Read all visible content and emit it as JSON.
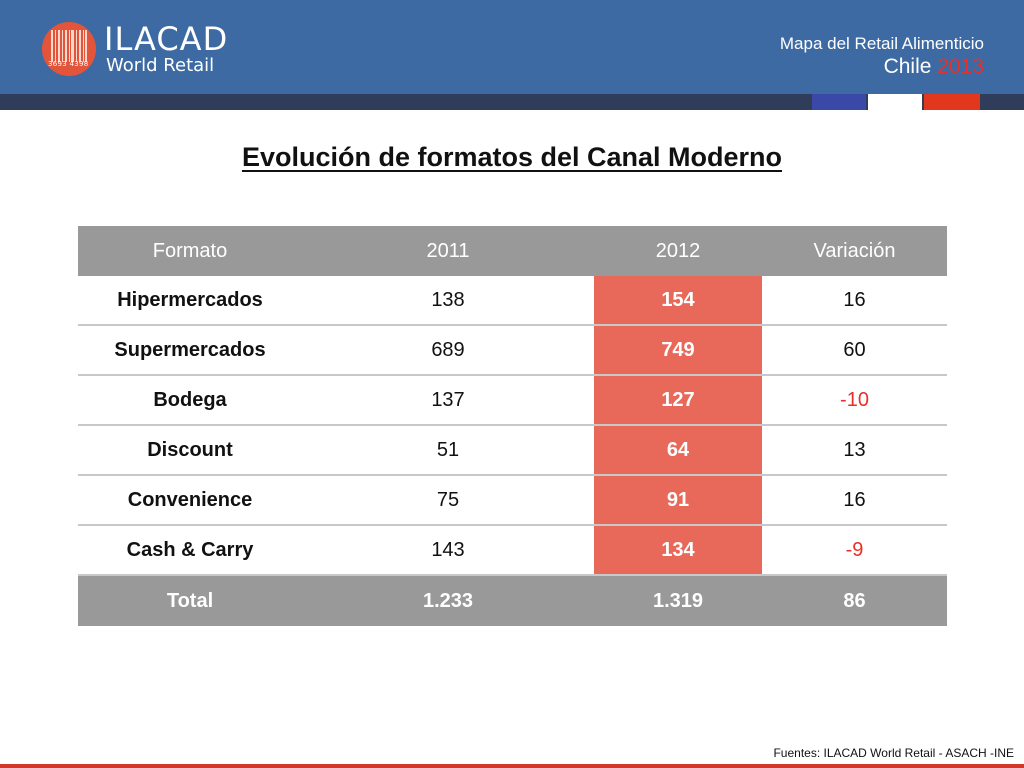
{
  "header": {
    "logo_name": "ILACAD",
    "logo_sub": "World Retail",
    "logo_numbers": "3693  4398",
    "line1": "Mapa del Retail Alimenticio",
    "country": "Chile",
    "year": "2013"
  },
  "title": "Evolución de formatos del Canal Moderno",
  "table": {
    "headers": [
      "Formato",
      "2011",
      "2012",
      "Variación"
    ],
    "rows": [
      {
        "formato": "Hipermercados",
        "y2011": "138",
        "y2012": "154",
        "variacion": "16"
      },
      {
        "formato": "Supermercados",
        "y2011": "689",
        "y2012": "749",
        "variacion": "60"
      },
      {
        "formato": "Bodega",
        "y2011": "137",
        "y2012": "127",
        "variacion": "-10"
      },
      {
        "formato": "Discount",
        "y2011": "51",
        "y2012": "64",
        "variacion": "13"
      },
      {
        "formato": "Convenience",
        "y2011": "75",
        "y2012": "91",
        "variacion": "16"
      },
      {
        "formato": "Cash & Carry",
        "y2011": "143",
        "y2012": "134",
        "variacion": "-9"
      }
    ],
    "total": {
      "label": "Total",
      "y2011": "1.233",
      "y2012": "1.319",
      "variacion": "86"
    }
  },
  "footer": "Fuentes: ILACAD World Retail - ASACH -INE",
  "colors": {
    "header_blue": "#3d6aa2",
    "table_gray": "#999999",
    "highlight": "#e8695a",
    "negative": "#e8302a"
  }
}
